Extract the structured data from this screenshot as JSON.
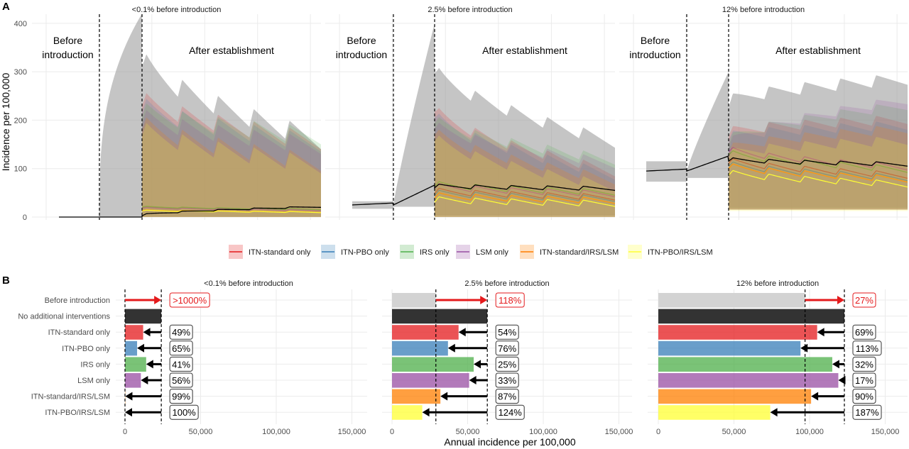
{
  "panel_a": {
    "label": "A",
    "ylabel": "Incidence per 100,000",
    "yticks": [
      "0",
      "100",
      "200",
      "300",
      "400"
    ],
    "before_label": "Before\nintroduction",
    "after_label": "After establishment",
    "facets": [
      {
        "title": "<0.1% before introduction"
      },
      {
        "title": "2.5% before introduction"
      },
      {
        "title": "12% before introduction"
      }
    ]
  },
  "legend": {
    "items": [
      {
        "label": "ITN-standard only",
        "color": "#e41a1c"
      },
      {
        "label": "ITN-PBO only",
        "color": "#377eb8"
      },
      {
        "label": "IRS only",
        "color": "#4daf4a"
      },
      {
        "label": "LSM only",
        "color": "#984ea3"
      },
      {
        "label": "ITN-standard/IRS/LSM",
        "color": "#ff7f00"
      },
      {
        "label": "ITN-PBO/IRS/LSM",
        "color": "#ffff33"
      }
    ]
  },
  "panel_b": {
    "label": "B",
    "xlabel": "Annual incidence per 100,000",
    "xticks": [
      "0",
      "50,000",
      "100,000",
      "150,000"
    ],
    "categories": [
      "Before introduction",
      "No additional interventions",
      "ITN-standard only",
      "ITN-PBO only",
      "IRS only",
      "LSM only",
      "ITN-standard/IRS/LSM",
      "ITN-PBO/IRS/LSM"
    ]
  },
  "chart_data": [
    {
      "type": "area",
      "title": "<0.1% before introduction",
      "ylabel": "Incidence per 100,000",
      "ylim": [
        0,
        410
      ],
      "vlines": [
        "introduction",
        "establishment"
      ],
      "series": [
        {
          "name": "No additional interventions",
          "peak_upper": 420,
          "final_median": 20
        },
        {
          "name": "ITN-standard only",
          "final_upper": 140
        },
        {
          "name": "ITN-PBO only",
          "final_upper": 135
        },
        {
          "name": "IRS only",
          "final_upper": 150
        },
        {
          "name": "LSM only",
          "final_upper": 130
        },
        {
          "name": "ITN-standard/IRS/LSM",
          "final_upper": 95
        },
        {
          "name": "ITN-PBO/IRS/LSM",
          "final_upper": 90
        }
      ]
    },
    {
      "type": "area",
      "title": "2.5% before introduction",
      "ylabel": "Incidence per 100,000",
      "ylim": [
        0,
        410
      ],
      "vlines": [
        "introduction",
        "establishment"
      ],
      "series": [
        {
          "name": "No additional interventions",
          "before_median": 25,
          "peak_upper": 400,
          "final_median": 55
        },
        {
          "name": "ITN-standard only",
          "final_median": 35
        },
        {
          "name": "ITN-PBO only",
          "final_median": 32
        },
        {
          "name": "IRS only",
          "final_median": 45
        },
        {
          "name": "LSM only",
          "final_median": 42
        },
        {
          "name": "ITN-standard/IRS/LSM",
          "final_median": 28
        },
        {
          "name": "ITN-PBO/IRS/LSM",
          "final_median": 22
        }
      ]
    },
    {
      "type": "area",
      "title": "12% before introduction",
      "ylabel": "Incidence per 100,000",
      "ylim": [
        0,
        410
      ],
      "vlines": [
        "introduction",
        "establishment"
      ],
      "series": [
        {
          "name": "No additional interventions",
          "before_median": 95,
          "peak_upper": 300,
          "final_median": 105
        },
        {
          "name": "ITN-standard only",
          "final_median": 80
        },
        {
          "name": "ITN-PBO only",
          "final_median": 75
        },
        {
          "name": "IRS only",
          "final_median": 92
        },
        {
          "name": "LSM only",
          "final_median": 97
        },
        {
          "name": "ITN-standard/IRS/LSM",
          "final_median": 72
        },
        {
          "name": "ITN-PBO/IRS/LSM",
          "final_median": 62
        }
      ]
    },
    {
      "type": "bar",
      "orientation": "horizontal",
      "title": "<0.1% before introduction",
      "xlabel": "Annual incidence per 100,000",
      "xlim": [
        0,
        165000
      ],
      "categories": [
        "Before introduction",
        "No additional interventions",
        "ITN-standard only",
        "ITN-PBO only",
        "IRS only",
        "LSM only",
        "ITN-standard/IRS/LSM",
        "ITN-PBO/IRS/LSM"
      ],
      "values": [
        0,
        24000,
        12000,
        8000,
        14000,
        10500,
        200,
        0
      ],
      "reference_lines": [
        0,
        24000
      ],
      "labels": [
        ">1000%",
        "",
        "49%",
        "65%",
        "41%",
        "56%",
        "99%",
        "100%"
      ]
    },
    {
      "type": "bar",
      "orientation": "horizontal",
      "title": "2.5% before introduction",
      "xlabel": "Annual incidence per 100,000",
      "xlim": [
        0,
        165000
      ],
      "categories": [
        "Before introduction",
        "No additional interventions",
        "ITN-standard only",
        "ITN-PBO only",
        "IRS only",
        "LSM only",
        "ITN-standard/IRS/LSM",
        "ITN-PBO/IRS/LSM"
      ],
      "values": [
        29000,
        63000,
        44000,
        37000,
        54000,
        51000,
        32000,
        20000
      ],
      "reference_lines": [
        29000,
        63000
      ],
      "labels": [
        "118%",
        "",
        "54%",
        "76%",
        "25%",
        "33%",
        "87%",
        "124%"
      ]
    },
    {
      "type": "bar",
      "orientation": "horizontal",
      "title": "12% before introduction",
      "xlabel": "Annual incidence per 100,000",
      "xlim": [
        0,
        165000
      ],
      "categories": [
        "Before introduction",
        "No additional interventions",
        "ITN-standard only",
        "ITN-PBO only",
        "IRS only",
        "LSM only",
        "ITN-standard/IRS/LSM",
        "ITN-PBO/IRS/LSM"
      ],
      "values": [
        97000,
        123000,
        105000,
        94000,
        115000,
        119000,
        101000,
        74000
      ],
      "reference_lines": [
        97000,
        123000
      ],
      "labels": [
        "27%",
        "",
        "69%",
        "113%",
        "32%",
        "17%",
        "90%",
        "187%"
      ]
    }
  ],
  "colors": {
    "grey_band": "#9e9e9e",
    "baseline_bar": "#d3d3d3",
    "no_intervention_bar": "#333333",
    "increase_arrow": "#e41a1c",
    "decrease_arrow": "#000000",
    "panel_bg": "#ffffff",
    "grid": "#ebebeb"
  }
}
